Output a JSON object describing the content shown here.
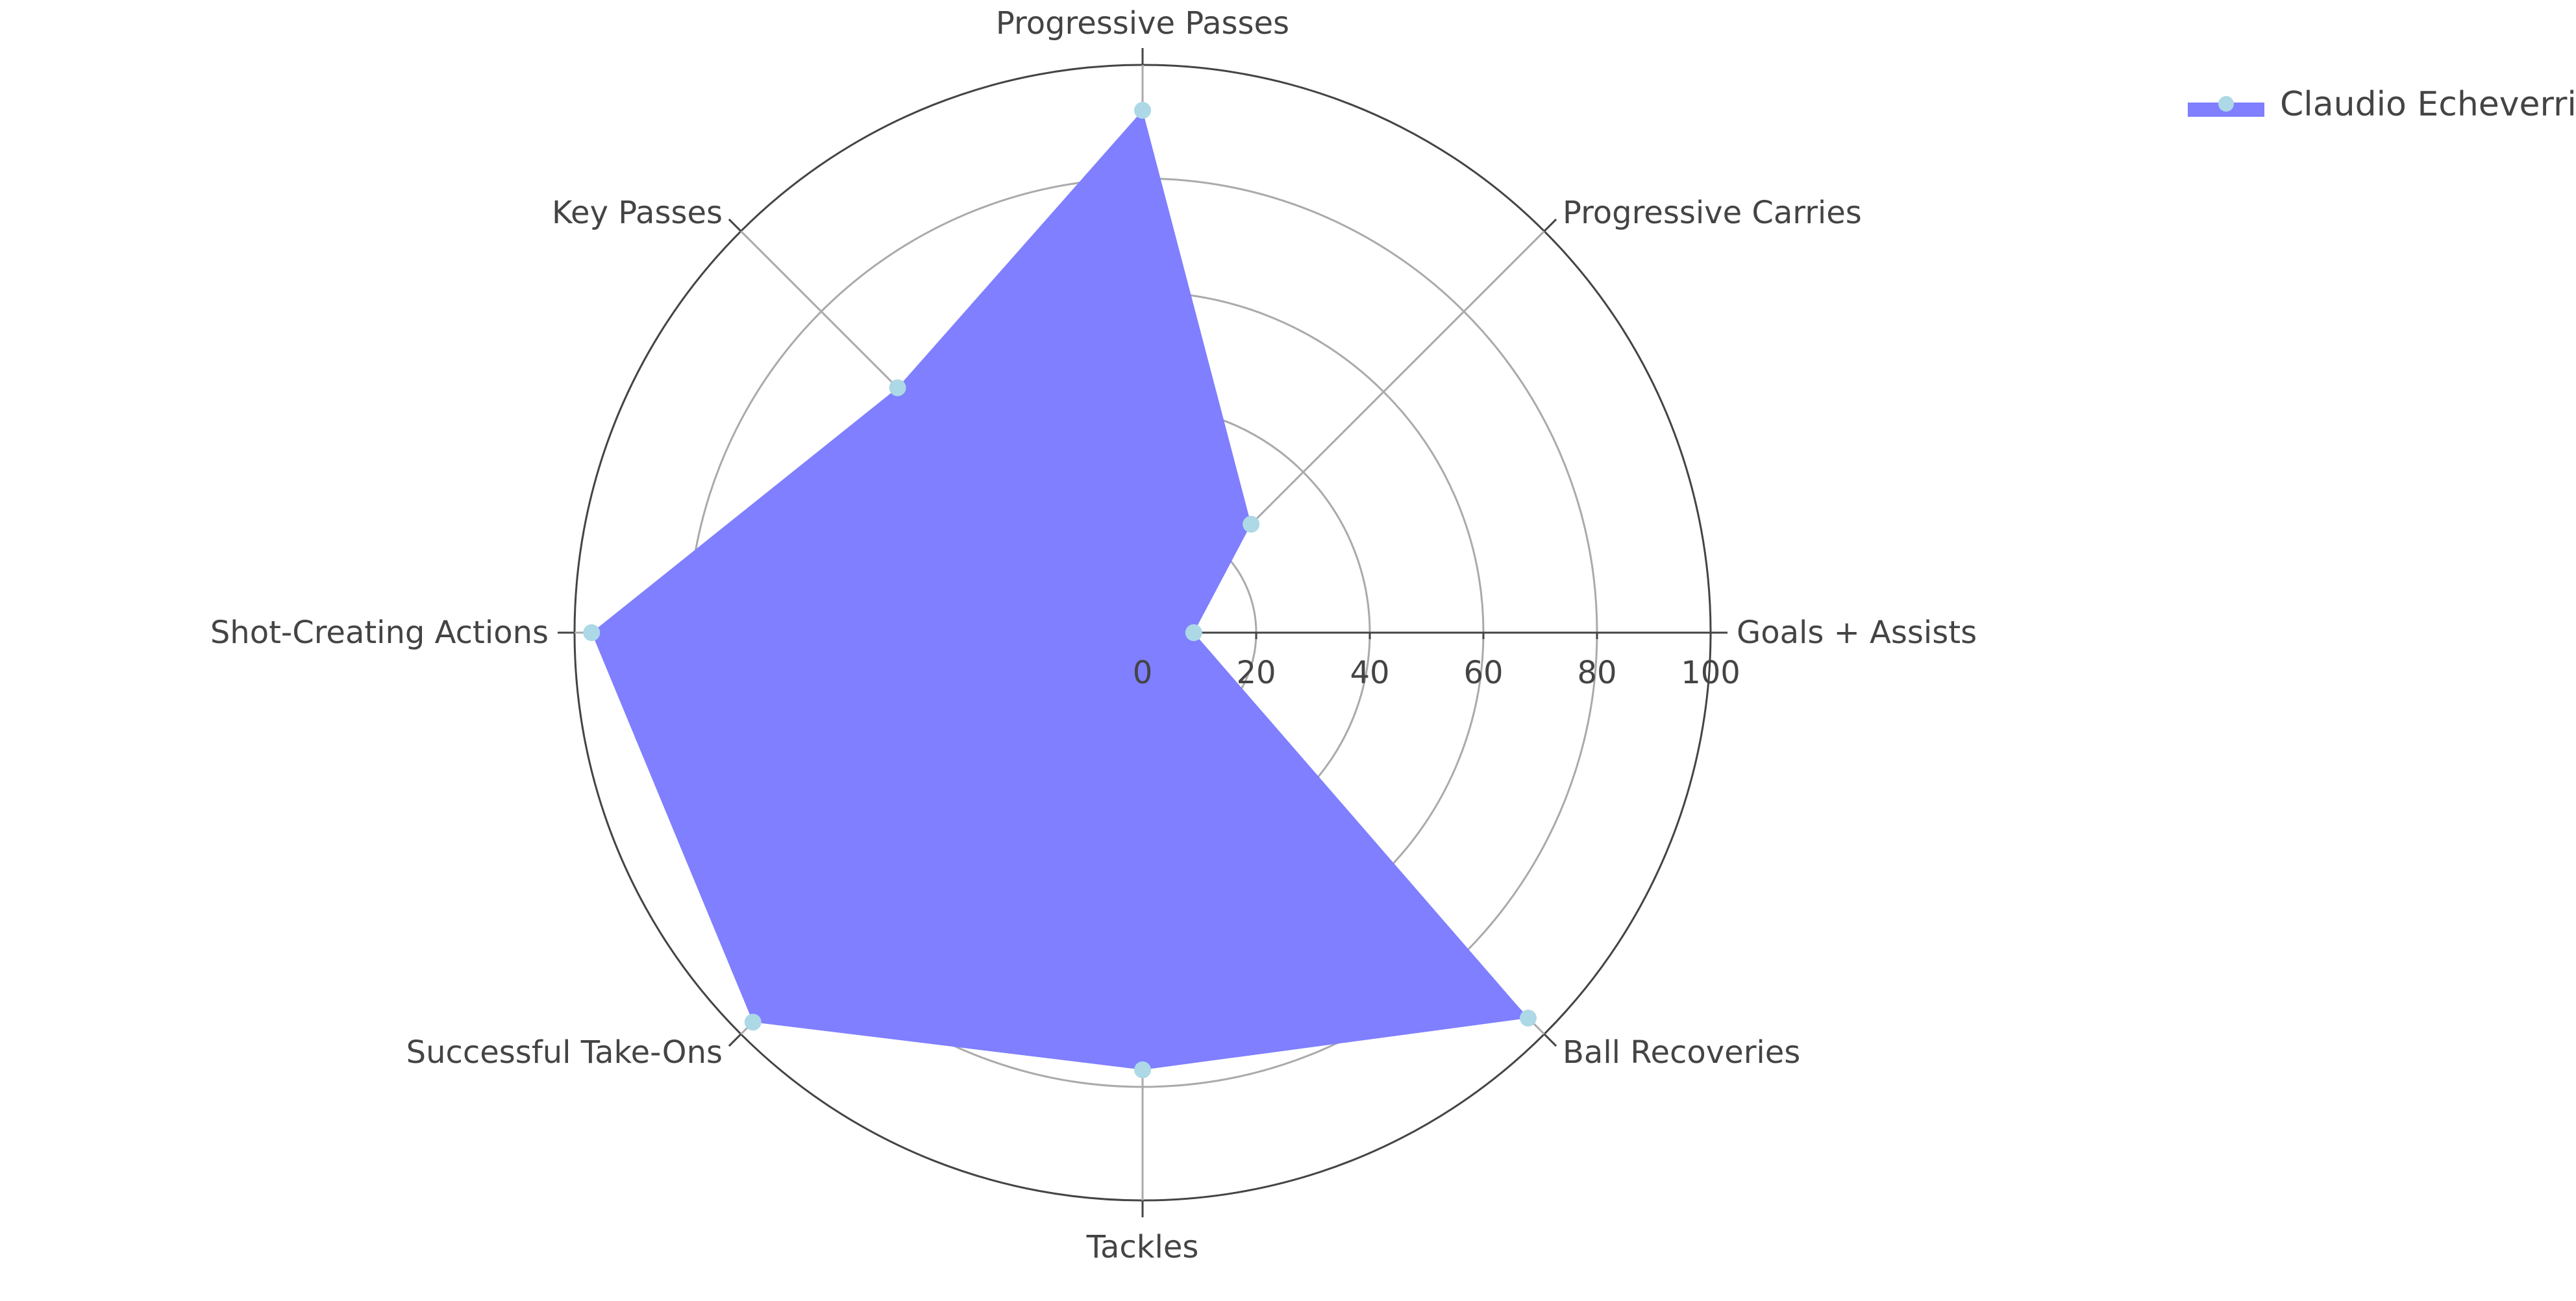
{
  "chart_data": {
    "type": "radar",
    "title": "",
    "axes": [
      "Goals + Assists",
      "Progressive Carries",
      "Progressive Passes",
      "Key Passes",
      "Shot-Creating Actions",
      "Successful Take-Ons",
      "Tackles",
      "Ball Recoveries"
    ],
    "radial_range": [
      0,
      100
    ],
    "radial_ticks": [
      "0",
      "20",
      "40",
      "60",
      "80",
      "100"
    ],
    "series": [
      {
        "name": "Claudio Echeverri",
        "values": [
          9,
          27,
          92,
          61,
          97,
          97,
          77,
          96
        ],
        "fill_color": "#7f7fff",
        "marker_color": "#add8e6"
      }
    ],
    "legend_position": "top-right",
    "grid": true,
    "colors": {
      "fill": "#7f7fff",
      "marker": "#add8e6",
      "grid": "#aaaaaa",
      "outer_ring": "#444444",
      "text": "#444444"
    }
  }
}
